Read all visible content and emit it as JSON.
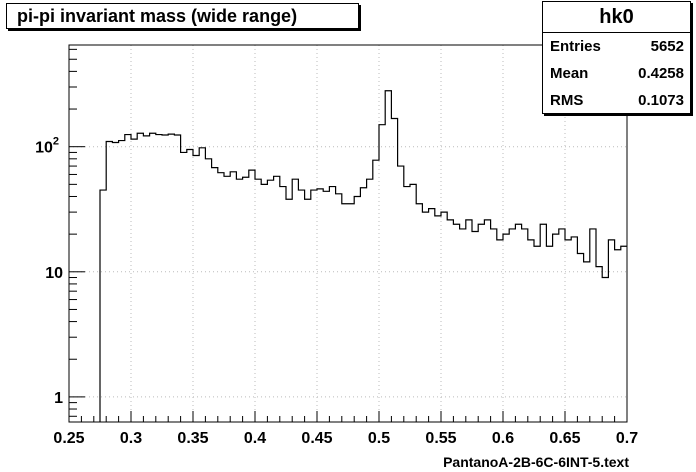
{
  "title": "pi-pi invariant mass (wide range)",
  "stats": {
    "name": "hk0",
    "rows": [
      {
        "label": "Entries",
        "value": "5652"
      },
      {
        "label": "Mean",
        "value": "0.4258"
      },
      {
        "label": "RMS",
        "value": "0.1073"
      }
    ]
  },
  "chart_data": {
    "type": "bar",
    "style": "step-histogram",
    "xlabel": "PantanoA-2B-6C-6INT-5.text",
    "ylabel": "",
    "xlim": [
      0.25,
      0.7
    ],
    "ylim": [
      0.63,
      650
    ],
    "yscale": "log",
    "grid": true,
    "bin_width": 0.005,
    "x_ticks": [
      "0.25",
      "0.3",
      "0.35",
      "0.4",
      "0.45",
      "0.5",
      "0.55",
      "0.6",
      "0.65",
      "0.7"
    ],
    "y_ticks": [
      {
        "value": 1,
        "base": "1",
        "exp": ""
      },
      {
        "value": 10,
        "base": "10",
        "exp": ""
      },
      {
        "value": 100,
        "base": "10",
        "exp": "2"
      }
    ],
    "x": [
      0.275,
      0.28,
      0.285,
      0.29,
      0.295,
      0.3,
      0.305,
      0.31,
      0.315,
      0.32,
      0.325,
      0.33,
      0.335,
      0.34,
      0.345,
      0.35,
      0.355,
      0.36,
      0.365,
      0.37,
      0.375,
      0.38,
      0.385,
      0.39,
      0.395,
      0.4,
      0.405,
      0.41,
      0.415,
      0.42,
      0.425,
      0.43,
      0.435,
      0.44,
      0.445,
      0.45,
      0.455,
      0.46,
      0.465,
      0.47,
      0.475,
      0.48,
      0.485,
      0.49,
      0.495,
      0.5,
      0.505,
      0.51,
      0.515,
      0.52,
      0.525,
      0.53,
      0.535,
      0.54,
      0.545,
      0.55,
      0.555,
      0.56,
      0.565,
      0.57,
      0.575,
      0.58,
      0.585,
      0.59,
      0.595,
      0.6,
      0.605,
      0.61,
      0.615,
      0.62,
      0.625,
      0.63,
      0.635,
      0.64,
      0.645,
      0.65,
      0.655,
      0.66,
      0.665,
      0.67,
      0.675,
      0.68,
      0.685,
      0.69,
      0.695
    ],
    "values": [
      45,
      110,
      108,
      112,
      125,
      115,
      128,
      122,
      128,
      125,
      124,
      126,
      124,
      90,
      95,
      85,
      98,
      80,
      68,
      62,
      58,
      63,
      55,
      57,
      65,
      55,
      50,
      54,
      58,
      48,
      38,
      55,
      45,
      38,
      45,
      46,
      44,
      48,
      42,
      35,
      35,
      40,
      47,
      55,
      78,
      150,
      280,
      168,
      70,
      48,
      50,
      35,
      30,
      32,
      28,
      30,
      26,
      24,
      22,
      26,
      21,
      24,
      26,
      22,
      18,
      20,
      22,
      24,
      22,
      18,
      16,
      24,
      16,
      20,
      22,
      18,
      19,
      14,
      12,
      22,
      11,
      9,
      18,
      15,
      16
    ]
  }
}
